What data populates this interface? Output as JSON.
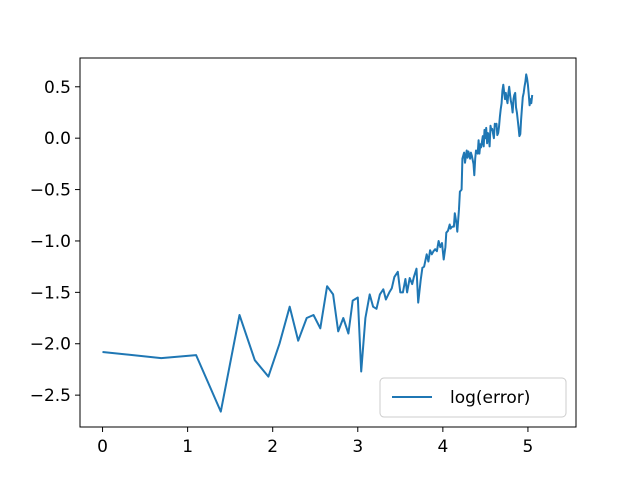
{
  "chart_data": {
    "type": "line",
    "title": "",
    "xlabel": "",
    "ylabel": "",
    "xlim": [
      -0.265,
      5.565
    ],
    "ylim": [
      -2.81,
      0.78
    ],
    "x_ticks": [
      0,
      1,
      2,
      3,
      4,
      5
    ],
    "x_tick_labels": [
      "0",
      "1",
      "2",
      "3",
      "4",
      "5"
    ],
    "y_ticks": [
      0.5,
      0.0,
      -0.5,
      -1.0,
      -1.5,
      -2.0,
      -2.5
    ],
    "y_tick_labels": [
      "0.5",
      "0.0",
      "−0.5",
      "−1.0",
      "−1.5",
      "−2.0",
      "−2.5"
    ],
    "grid": false,
    "legend_position": "lower right",
    "series": [
      {
        "name": "log(error)",
        "color": "#1f77b4",
        "points": [
          [
            0.0,
            -2.08
          ],
          [
            0.69,
            -2.14
          ],
          [
            1.1,
            -2.11
          ],
          [
            1.39,
            -2.66
          ],
          [
            1.61,
            -1.72
          ],
          [
            1.79,
            -2.16
          ],
          [
            1.95,
            -2.32
          ],
          [
            2.08,
            -2.0
          ],
          [
            2.2,
            -1.64
          ],
          [
            2.3,
            -1.97
          ],
          [
            2.4,
            -1.75
          ],
          [
            2.48,
            -1.72
          ],
          [
            2.56,
            -1.85
          ],
          [
            2.64,
            -1.44
          ],
          [
            2.71,
            -1.52
          ],
          [
            2.77,
            -1.88
          ],
          [
            2.83,
            -1.75
          ],
          [
            2.89,
            -1.9
          ],
          [
            2.94,
            -1.58
          ],
          [
            3.0,
            -1.55
          ],
          [
            3.04,
            -2.27
          ],
          [
            3.09,
            -1.75
          ],
          [
            3.14,
            -1.52
          ],
          [
            3.18,
            -1.64
          ],
          [
            3.22,
            -1.66
          ],
          [
            3.26,
            -1.52
          ],
          [
            3.3,
            -1.47
          ],
          [
            3.33,
            -1.57
          ],
          [
            3.37,
            -1.5
          ],
          [
            3.4,
            -1.46
          ],
          [
            3.43,
            -1.35
          ],
          [
            3.47,
            -1.3
          ],
          [
            3.5,
            -1.5
          ],
          [
            3.53,
            -1.5
          ],
          [
            3.56,
            -1.37
          ],
          [
            3.58,
            -1.5
          ],
          [
            3.61,
            -1.36
          ],
          [
            3.64,
            -1.42
          ],
          [
            3.66,
            -1.35
          ],
          [
            3.69,
            -1.27
          ],
          [
            3.71,
            -1.6
          ],
          [
            3.74,
            -1.38
          ],
          [
            3.76,
            -1.26
          ],
          [
            3.78,
            -1.25
          ],
          [
            3.81,
            -1.13
          ],
          [
            3.83,
            -1.2
          ],
          [
            3.85,
            -1.09
          ],
          [
            3.87,
            -1.13
          ],
          [
            3.89,
            -1.1
          ],
          [
            3.91,
            -1.08
          ],
          [
            3.93,
            -1.1
          ],
          [
            3.95,
            -1.0
          ],
          [
            3.97,
            -1.06
          ],
          [
            3.99,
            -1.02
          ],
          [
            4.01,
            -1.18
          ],
          [
            4.03,
            -1.06
          ],
          [
            4.04,
            -0.92
          ],
          [
            4.06,
            -0.9
          ],
          [
            4.08,
            -0.84
          ],
          [
            4.09,
            -0.88
          ],
          [
            4.11,
            -0.86
          ],
          [
            4.13,
            -0.86
          ],
          [
            4.14,
            -0.73
          ],
          [
            4.16,
            -0.83
          ],
          [
            4.17,
            -0.91
          ],
          [
            4.19,
            -0.69
          ],
          [
            4.2,
            -0.52
          ],
          [
            4.22,
            -0.5
          ],
          [
            4.23,
            -0.2
          ],
          [
            4.25,
            -0.14
          ],
          [
            4.26,
            -0.24
          ],
          [
            4.28,
            -0.12
          ],
          [
            4.29,
            -0.19
          ],
          [
            4.3,
            -0.13
          ],
          [
            4.32,
            -0.2
          ],
          [
            4.33,
            -0.14
          ],
          [
            4.34,
            -0.17
          ],
          [
            4.36,
            -0.25
          ],
          [
            4.37,
            -0.36
          ],
          [
            4.38,
            -0.2
          ],
          [
            4.39,
            -0.12
          ],
          [
            4.41,
            -0.15
          ],
          [
            4.42,
            -0.02
          ],
          [
            4.43,
            -0.15
          ],
          [
            4.44,
            -0.06
          ],
          [
            4.45,
            -0.09
          ],
          [
            4.47,
            0.02
          ],
          [
            4.48,
            -0.08
          ],
          [
            4.49,
            0.08
          ],
          [
            4.5,
            0.0
          ],
          [
            4.51,
            0.1
          ],
          [
            4.52,
            -0.05
          ],
          [
            4.53,
            0.05
          ],
          [
            4.54,
            0.02
          ],
          [
            4.55,
            -0.08
          ],
          [
            4.56,
            0.12
          ],
          [
            4.57,
            0.08
          ],
          [
            4.58,
            0.09
          ],
          [
            4.6,
            0.0
          ],
          [
            4.61,
            0.14
          ],
          [
            4.62,
            0.12
          ],
          [
            4.63,
            0.14
          ],
          [
            4.64,
            0.03
          ],
          [
            4.65,
            0.05
          ],
          [
            4.66,
            0.11
          ],
          [
            4.67,
            0.21
          ],
          [
            4.68,
            0.28
          ],
          [
            4.69,
            0.34
          ],
          [
            4.7,
            0.46
          ],
          [
            4.71,
            0.52
          ],
          [
            4.72,
            0.45
          ],
          [
            4.73,
            0.38
          ],
          [
            4.74,
            0.44
          ],
          [
            4.75,
            0.38
          ],
          [
            4.76,
            0.34
          ],
          [
            4.77,
            0.44
          ],
          [
            4.78,
            0.5
          ],
          [
            4.79,
            0.42
          ],
          [
            4.8,
            0.36
          ],
          [
            4.81,
            0.32
          ],
          [
            4.82,
            0.25
          ],
          [
            4.83,
            0.38
          ],
          [
            4.84,
            0.42
          ],
          [
            4.85,
            0.44
          ],
          [
            4.86,
            0.3
          ],
          [
            4.87,
            0.25
          ],
          [
            4.88,
            0.18
          ],
          [
            4.89,
            0.1
          ],
          [
            4.9,
            0.02
          ],
          [
            4.91,
            0.04
          ],
          [
            4.92,
            0.18
          ],
          [
            4.93,
            0.3
          ],
          [
            4.94,
            0.4
          ],
          [
            4.95,
            0.44
          ],
          [
            4.96,
            0.5
          ],
          [
            4.97,
            0.55
          ],
          [
            4.98,
            0.62
          ],
          [
            4.99,
            0.58
          ],
          [
            5.0,
            0.52
          ],
          [
            5.01,
            0.42
          ],
          [
            5.02,
            0.32
          ],
          [
            5.03,
            0.38
          ],
          [
            5.04,
            0.34
          ],
          [
            5.05,
            0.42
          ]
        ]
      }
    ]
  }
}
